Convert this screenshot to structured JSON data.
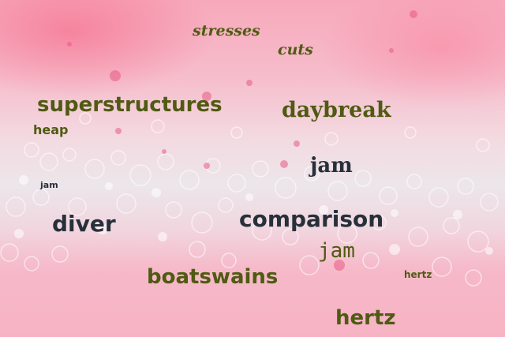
{
  "words": {
    "stresses": "stresses",
    "cuts": "cuts",
    "superstructures": "superstructures",
    "daybreak": "daybreak",
    "heap": "heap",
    "jam_1": "jam",
    "jam_2": "jam",
    "diver": "diver",
    "comparison": "comparison",
    "jam_3": "jam",
    "boatswains": "boatswains",
    "hertz_1": "hertz",
    "hertz_2": "hertz"
  },
  "colors": {
    "olive_text": "#4f5a12",
    "dark_text": "#27303a",
    "background_pink": "#f7a9bb",
    "foam_white": "#ece6ea"
  }
}
